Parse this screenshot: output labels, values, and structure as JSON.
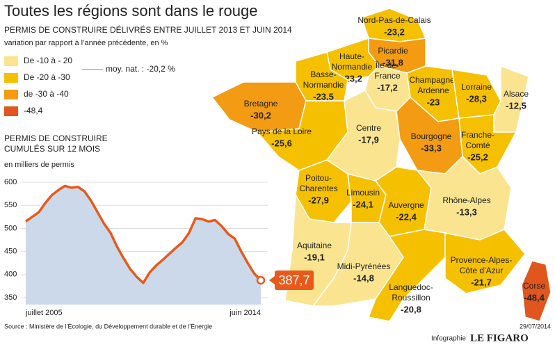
{
  "header": {
    "title": "Toutes les régions sont dans le rouge",
    "subtitle": "PERMIS DE CONSTRUIRE DÉLIVRÉS ENTRE JUILLET 2013 ET JUIN 2014",
    "note": "variation par rapport à l’année précédente, en %"
  },
  "legend": {
    "items": [
      {
        "label": "De -10 à - 20",
        "color": "#fae48f"
      },
      {
        "label": "De -20 à -30",
        "color": "#f5c000"
      },
      {
        "label": "de -30 à -40",
        "color": "#f39b12"
      },
      {
        "label": "-48,4",
        "color": "#e0561c"
      }
    ],
    "annotation": "moy. nat. : -20,2 %"
  },
  "map": {
    "regions": [
      {
        "name": [
          "Nord-Pas-de-Calais"
        ],
        "value": "-23,2",
        "color": "#f5c000"
      },
      {
        "name": [
          "Picardie"
        ],
        "value": "-31,8",
        "color": "#f39b12"
      },
      {
        "name": [
          "Haute-",
          "Normandie"
        ],
        "value": "-23,2",
        "color": "#f5c000"
      },
      {
        "name": [
          "Basse-",
          "Normandie"
        ],
        "value": "-23,5",
        "color": "#f5c000"
      },
      {
        "name": [
          "Île-de-",
          "France"
        ],
        "value": "-17,2",
        "color": "#fae48f"
      },
      {
        "name": [
          "Champagne-",
          "Ardenne"
        ],
        "value": "-23",
        "color": "#f5c000"
      },
      {
        "name": [
          "Lorraine"
        ],
        "value": "-28,3",
        "color": "#f5c000"
      },
      {
        "name": [
          "Alsace"
        ],
        "value": "-12,5",
        "color": "#fae48f"
      },
      {
        "name": [
          "Bretagne"
        ],
        "value": "-30,2",
        "color": "#f39b12"
      },
      {
        "name": [
          "Pays de la Loire"
        ],
        "value": "-25,6",
        "color": "#f5c000"
      },
      {
        "name": [
          "Centre"
        ],
        "value": "-17,9",
        "color": "#fae48f"
      },
      {
        "name": [
          "Bourgogne"
        ],
        "value": "-33,3",
        "color": "#f39b12"
      },
      {
        "name": [
          "Franche-",
          "Comté"
        ],
        "value": "-25,2",
        "color": "#f5c000"
      },
      {
        "name": [
          "Poitou-",
          "Charentes"
        ],
        "value": "-27,9",
        "color": "#f5c000"
      },
      {
        "name": [
          "Limousin"
        ],
        "value": "-24,1",
        "color": "#f5c000"
      },
      {
        "name": [
          "Auvergne"
        ],
        "value": "-22,4",
        "color": "#f5c000"
      },
      {
        "name": [
          "Rhône-Alpes"
        ],
        "value": "-13,3",
        "color": "#fae48f"
      },
      {
        "name": [
          "Aquitaine"
        ],
        "value": "-19,1",
        "color": "#fae48f"
      },
      {
        "name": [
          "Midi-Pyrénées"
        ],
        "value": "-14,8",
        "color": "#fae48f"
      },
      {
        "name": [
          "Languedoc-",
          "Roussillon"
        ],
        "value": "-20,8",
        "color": "#f5c000"
      },
      {
        "name": [
          "Provence-Alpes-",
          "Côte d’Azur"
        ],
        "value": "-21,7",
        "color": "#f5c000"
      },
      {
        "name": [
          "Corse"
        ],
        "value": "-48,4",
        "color": "#e0561c"
      }
    ]
  },
  "chart_data": {
    "type": "area",
    "title": [
      "PERMIS DE CONSTRUIRE",
      "CUMULÉS SUR 12 MOIS"
    ],
    "subtitle": "en milliers de permis",
    "categories": [
      "juillet 2005",
      null,
      null,
      null,
      null,
      null,
      null,
      null,
      null,
      null,
      null,
      null,
      null,
      null,
      null,
      null,
      null,
      null,
      null,
      null,
      null,
      null,
      null,
      null,
      null,
      null,
      null,
      null,
      null,
      null,
      null,
      null,
      null,
      null,
      null,
      null,
      "juin 2014"
    ],
    "values": [
      515,
      525,
      535,
      555,
      572,
      583,
      592,
      588,
      590,
      580,
      560,
      535,
      510,
      490,
      460,
      435,
      412,
      395,
      382,
      405,
      420,
      432,
      445,
      458,
      470,
      490,
      522,
      520,
      515,
      518,
      505,
      488,
      478,
      450,
      425,
      402,
      387.7
    ],
    "value_labels": [
      null,
      null,
      null,
      null,
      null,
      null,
      null,
      null,
      null,
      null,
      null,
      null,
      null,
      null,
      null,
      null,
      null,
      null,
      null,
      null,
      null,
      null,
      null,
      null,
      null,
      null,
      null,
      null,
      null,
      null,
      null,
      null,
      null,
      null,
      null,
      null,
      "387,7"
    ],
    "color": "#e8591a",
    "fill": "#cbd9ea",
    "ylim": [
      335,
      610
    ],
    "yticks": [
      350,
      400,
      450,
      500,
      550,
      600
    ],
    "grid": true
  },
  "footer": {
    "source": "Source : Ministère de l’Écologie, du Développement durable et de l’Énergie",
    "date": "29/07/2014",
    "credit": "Infographie",
    "brand": "LE FIGARO"
  }
}
